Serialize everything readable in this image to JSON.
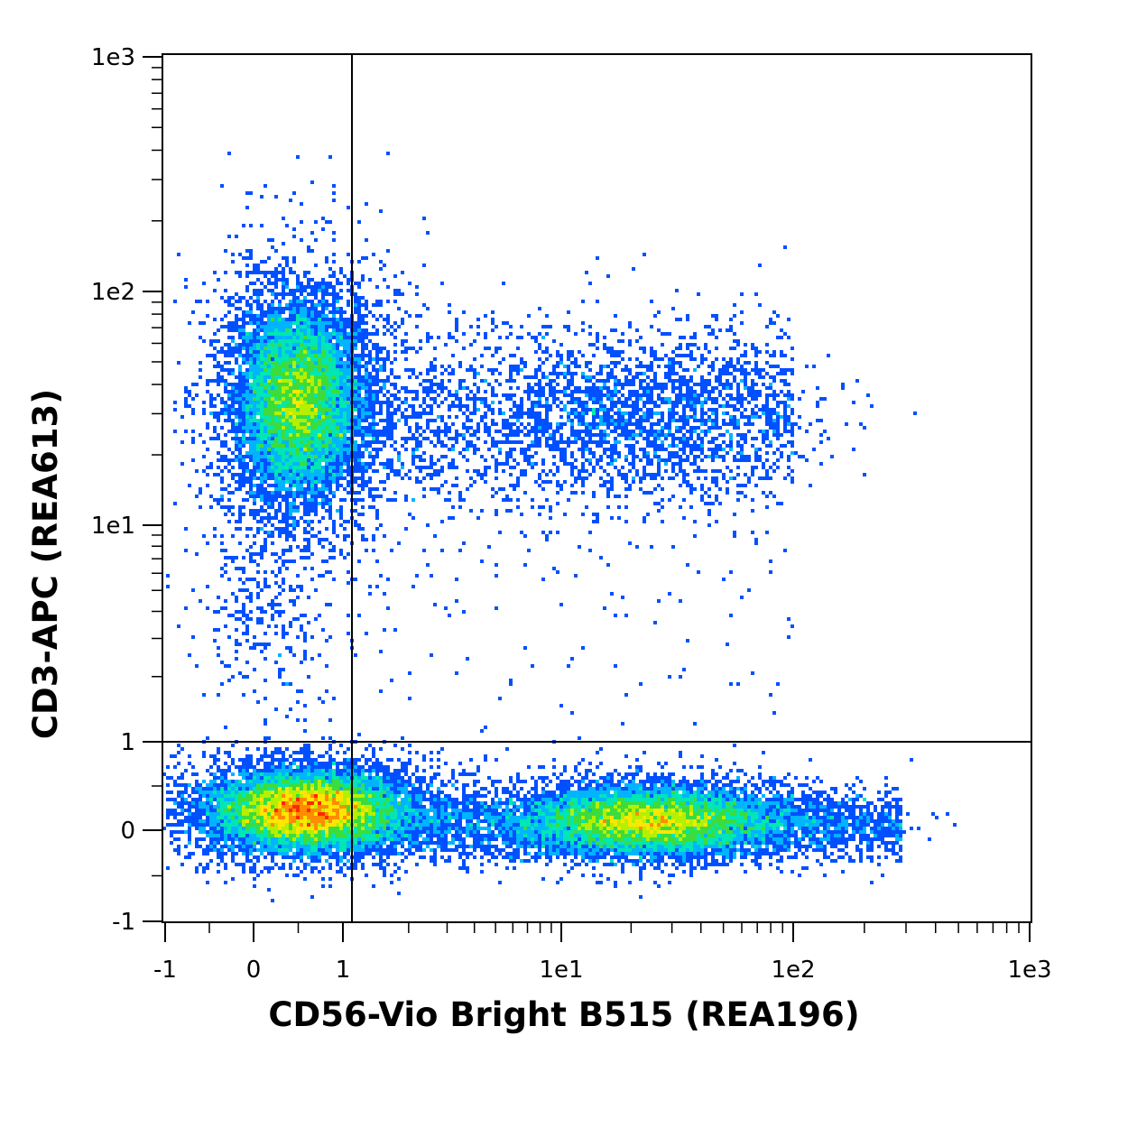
{
  "chart_data": {
    "type": "scatter",
    "subtype": "flow-cytometry-density-dot-plot",
    "title": "",
    "xlabel": "CD56-Vio Bright B515 (REA196)",
    "ylabel": "CD3-APC (REA613)",
    "x_scale": "biexponential",
    "y_scale": "biexponential",
    "xlim": [
      -1,
      1000
    ],
    "ylim": [
      -1,
      1000
    ],
    "x_ticks": [
      {
        "value": -1,
        "label": "-1"
      },
      {
        "value": 0,
        "label": "0"
      },
      {
        "value": 1,
        "label": "1"
      },
      {
        "value": 10,
        "label": "1e1"
      },
      {
        "value": 100,
        "label": "1e2"
      },
      {
        "value": 1000,
        "label": "1e3"
      }
    ],
    "y_ticks": [
      {
        "value": -1,
        "label": "-1"
      },
      {
        "value": 0,
        "label": "0"
      },
      {
        "value": 1,
        "label": "1"
      },
      {
        "value": 10,
        "label": "1e1"
      },
      {
        "value": 100,
        "label": "1e2"
      },
      {
        "value": 1000,
        "label": "1e3"
      }
    ],
    "quadrant_gate": {
      "x": 1.1,
      "y": 1.0
    },
    "populations": [
      {
        "x_center": 0.25,
        "y_center": 33,
        "relative_density": "high"
      },
      {
        "x_center": 0.6,
        "y_center": 0.1,
        "relative_density": "very high"
      },
      {
        "x_center": 22,
        "y_center": 0.05,
        "relative_density": "high"
      },
      {
        "x_center": 25,
        "y_center": 28,
        "relative_density": "low"
      }
    ],
    "density_colormap": [
      "#0000ff",
      "#0050ff",
      "#00b4ff",
      "#00e6b4",
      "#3cdc3c",
      "#b4f000",
      "#ffe600",
      "#ff8c00",
      "#ff2800"
    ],
    "grid": false,
    "legend": "none"
  }
}
